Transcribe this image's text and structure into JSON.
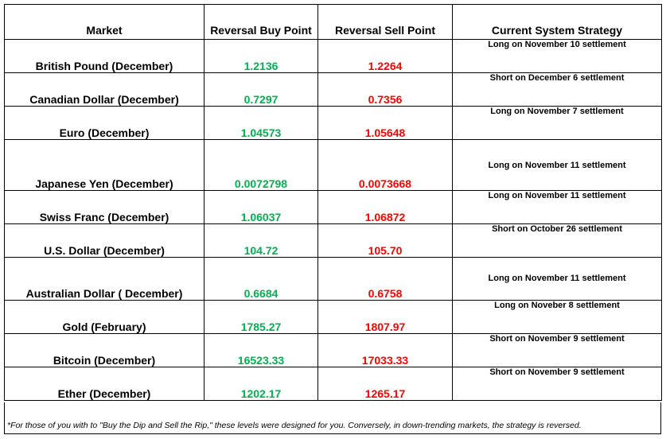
{
  "headers": {
    "market": "Market",
    "buy": "Reversal Buy Point",
    "sell": "Reversal Sell Point",
    "strategy": "Current System Strategy"
  },
  "rows": [
    {
      "market": "British Pound (December)",
      "buy": "1.2136",
      "sell": "1.2264",
      "strategy": "Long on November 10 settlement"
    },
    {
      "market": "Canadian Dollar (December)",
      "buy": "0.7297",
      "sell": "0.7356",
      "strategy": "Short on December 6 settlement"
    },
    {
      "market": "Euro (December)",
      "buy": "1.04573",
      "sell": "1.05648",
      "strategy": "Long on November 7 settlement"
    },
    {
      "market": "Japanese Yen (December)",
      "buy": "0.0072798",
      "sell": "0.0073668",
      "strategy": "Long on November 11 settlement"
    },
    {
      "market": "Swiss Franc (December)",
      "buy": "1.06037",
      "sell": "1.06872",
      "strategy": "Long on November 11 settlement"
    },
    {
      "market": "U.S. Dollar (December)",
      "buy": "104.72",
      "sell": "105.70",
      "strategy": "Short on October 26 settlement"
    },
    {
      "market": "Australian Dollar ( December)",
      "buy": "0.6684",
      "sell": "0.6758",
      "strategy": "Long on November 11 settlement"
    },
    {
      "market": "Gold (February)",
      "buy": "1785.27",
      "sell": "1807.97",
      "strategy": "Long on Noveber 8 settlement"
    },
    {
      "market": "Bitcoin (December)",
      "buy": "16523.33",
      "sell": "17033.33",
      "strategy": "Short on November 9 settlement"
    },
    {
      "market": "Ether (December)",
      "buy": "1202.17",
      "sell": "1265.17",
      "strategy": "Short on November 9 settlement"
    }
  ],
  "footnote": "*For those of you with to \"Buy the Dip and Sell the Rip,\" these levels were designed for you. Conversely, in down-trending markets, the strategy is reversed.",
  "colors": {
    "buy": "#00b050",
    "sell": "#ff0000"
  }
}
